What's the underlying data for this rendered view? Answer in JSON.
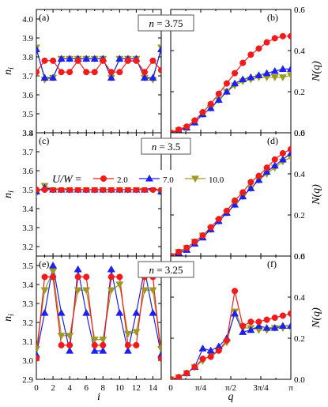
{
  "chart_data": [
    {
      "type": "line",
      "panel_label": "(a)",
      "n_label": "n = 3.75",
      "xlabel": "",
      "ylabel": "n_i",
      "xlim": [
        0,
        15
      ],
      "ylim": [
        3.4,
        4.05
      ],
      "yticks": [
        "3.4",
        "3.5",
        "3.6",
        "3.7",
        "3.8",
        "3.9",
        "4.0"
      ],
      "xticks": [],
      "series": [
        {
          "name": "2.0",
          "x": [
            0,
            1,
            2,
            3,
            4,
            5,
            6,
            7,
            8,
            9,
            10,
            11,
            12,
            13,
            14,
            15
          ],
          "y": [
            3.72,
            3.78,
            3.78,
            3.72,
            3.72,
            3.78,
            3.72,
            3.72,
            3.78,
            3.72,
            3.72,
            3.78,
            3.78,
            3.72,
            3.78,
            3.73
          ]
        },
        {
          "name": "7.0",
          "x": [
            0,
            1,
            2,
            3,
            4,
            5,
            6,
            7,
            8,
            9,
            10,
            11,
            12,
            13,
            14,
            15
          ],
          "y": [
            3.84,
            3.69,
            3.69,
            3.79,
            3.79,
            3.79,
            3.79,
            3.79,
            3.79,
            3.69,
            3.79,
            3.79,
            3.79,
            3.69,
            3.69,
            3.84
          ]
        },
        {
          "name": "10.0",
          "x": [
            0,
            1,
            2,
            3,
            4,
            5,
            6,
            7,
            8,
            9,
            10,
            11,
            12,
            13,
            14,
            15
          ],
          "y": [
            3.85,
            3.68,
            3.69,
            3.79,
            3.79,
            3.79,
            3.79,
            3.79,
            3.79,
            3.69,
            3.79,
            3.79,
            3.79,
            3.69,
            3.68,
            3.85
          ]
        }
      ]
    },
    {
      "type": "line",
      "panel_label": "(b)",
      "n_label": "",
      "xlabel": "",
      "ylabel": "N(q)",
      "xlim": [
        0,
        3.14159
      ],
      "ylim": [
        0,
        0.6
      ],
      "yticks": [
        "0.0",
        "0.2",
        "0.4",
        "0.6"
      ],
      "xticks": [],
      "series": [
        {
          "name": "2.0",
          "x": [
            0,
            0.2094,
            0.4189,
            0.6283,
            0.8378,
            1.0472,
            1.2566,
            1.4661,
            1.6755,
            1.885,
            2.0944,
            2.3038,
            2.5133,
            2.7227,
            2.9322,
            3.1416
          ],
          "y": [
            0,
            0.015,
            0.03,
            0.06,
            0.1,
            0.14,
            0.19,
            0.24,
            0.29,
            0.34,
            0.38,
            0.41,
            0.44,
            0.46,
            0.47,
            0.47
          ]
        },
        {
          "name": "7.0",
          "x": [
            0,
            0.2094,
            0.4189,
            0.6283,
            0.8378,
            1.0472,
            1.2566,
            1.4661,
            1.6755,
            1.885,
            2.0944,
            2.3038,
            2.5133,
            2.7227,
            2.9322,
            3.1416
          ],
          "y": [
            0,
            0.012,
            0.025,
            0.05,
            0.09,
            0.12,
            0.16,
            0.2,
            0.24,
            0.26,
            0.27,
            0.28,
            0.29,
            0.3,
            0.31,
            0.31
          ]
        },
        {
          "name": "10.0",
          "x": [
            0,
            0.2094,
            0.4189,
            0.6283,
            0.8378,
            1.0472,
            1.2566,
            1.4661,
            1.6755,
            1.885,
            2.0944,
            2.3038,
            2.5133,
            2.7227,
            2.9322,
            3.1416
          ],
          "y": [
            0,
            0.012,
            0.024,
            0.05,
            0.09,
            0.12,
            0.16,
            0.2,
            0.23,
            0.25,
            0.26,
            0.27,
            0.27,
            0.27,
            0.27,
            0.28
          ]
        }
      ]
    },
    {
      "type": "line",
      "panel_label": "(c)",
      "n_label": "n = 3.5",
      "xlabel": "",
      "ylabel": "n_i",
      "xlim": [
        0,
        15
      ],
      "ylim": [
        3.15,
        3.8
      ],
      "yticks": [
        "3.2",
        "3.3",
        "3.4",
        "3.5",
        "3.6",
        "3.7",
        "3.8"
      ],
      "xticks": [],
      "legend": {
        "prefix": "U/W =",
        "entries": [
          "2.0",
          "7.0",
          "10.0"
        ],
        "placement": "top-left"
      },
      "series": [
        {
          "name": "2.0",
          "x": [
            0,
            1,
            2,
            3,
            4,
            5,
            6,
            7,
            8,
            9,
            10,
            11,
            12,
            13,
            14,
            15
          ],
          "y": [
            3.5,
            3.5,
            3.5,
            3.5,
            3.5,
            3.5,
            3.5,
            3.5,
            3.5,
            3.5,
            3.5,
            3.5,
            3.5,
            3.5,
            3.5,
            3.5
          ]
        },
        {
          "name": "7.0",
          "x": [
            0,
            1,
            2,
            3,
            4,
            5,
            6,
            7,
            8,
            9,
            10,
            11,
            12,
            13,
            14,
            15
          ],
          "y": [
            3.49,
            3.51,
            3.5,
            3.5,
            3.5,
            3.5,
            3.5,
            3.5,
            3.5,
            3.5,
            3.5,
            3.5,
            3.5,
            3.5,
            3.51,
            3.49
          ]
        },
        {
          "name": "10.0",
          "x": [
            0,
            1,
            2,
            3,
            4,
            5,
            6,
            7,
            8,
            9,
            10,
            11,
            12,
            13,
            14,
            15
          ],
          "y": [
            3.48,
            3.52,
            3.5,
            3.51,
            3.5,
            3.5,
            3.5,
            3.5,
            3.5,
            3.5,
            3.5,
            3.5,
            3.5,
            3.51,
            3.52,
            3.48
          ]
        }
      ]
    },
    {
      "type": "line",
      "panel_label": "(d)",
      "n_label": "",
      "xlabel": "",
      "ylabel": "N(q)",
      "xlim": [
        0,
        3.14159
      ],
      "ylim": [
        0,
        0.6
      ],
      "yticks": [
        "0.0",
        "0.2",
        "0.4",
        "0.6"
      ],
      "xticks": [],
      "series": [
        {
          "name": "2.0",
          "x": [
            0,
            0.2094,
            0.4189,
            0.6283,
            0.8378,
            1.0472,
            1.2566,
            1.4661,
            1.6755,
            1.885,
            2.0944,
            2.3038,
            2.5133,
            2.7227,
            2.9322,
            3.1416
          ],
          "y": [
            0,
            0.02,
            0.04,
            0.07,
            0.1,
            0.14,
            0.18,
            0.22,
            0.27,
            0.31,
            0.36,
            0.39,
            0.43,
            0.47,
            0.5,
            0.52
          ]
        },
        {
          "name": "7.0",
          "x": [
            0,
            0.2094,
            0.4189,
            0.6283,
            0.8378,
            1.0472,
            1.2566,
            1.4661,
            1.6755,
            1.885,
            2.0944,
            2.3038,
            2.5133,
            2.7227,
            2.9322,
            3.1416
          ],
          "y": [
            0,
            0.015,
            0.03,
            0.06,
            0.09,
            0.13,
            0.17,
            0.21,
            0.25,
            0.29,
            0.33,
            0.37,
            0.41,
            0.44,
            0.47,
            0.5
          ]
        },
        {
          "name": "10.0",
          "x": [
            0,
            0.2094,
            0.4189,
            0.6283,
            0.8378,
            1.0472,
            1.2566,
            1.4661,
            1.6755,
            1.885,
            2.0944,
            2.3038,
            2.5133,
            2.7227,
            2.9322,
            3.1416
          ],
          "y": [
            0,
            0.02,
            0.04,
            0.07,
            0.1,
            0.13,
            0.17,
            0.21,
            0.25,
            0.29,
            0.33,
            0.37,
            0.4,
            0.43,
            0.46,
            0.48
          ]
        }
      ]
    },
    {
      "type": "line",
      "panel_label": "(e)",
      "n_label": "n = 3.25",
      "xlabel": "i",
      "ylabel": "n_i",
      "xlim": [
        0,
        15
      ],
      "ylim": [
        2.9,
        3.55
      ],
      "yticks": [
        "2.9",
        "3.0",
        "3.1",
        "3.2",
        "3.3",
        "3.4",
        "3.5"
      ],
      "xticks": [
        "0",
        "2",
        "4",
        "6",
        "8",
        "10",
        "12",
        "14"
      ],
      "series": [
        {
          "name": "2.0",
          "x": [
            0,
            1,
            2,
            3,
            4,
            5,
            6,
            7,
            8,
            9,
            10,
            11,
            12,
            13,
            14,
            15
          ],
          "y": [
            3.01,
            3.44,
            3.44,
            3.08,
            3.08,
            3.44,
            3.44,
            3.08,
            3.08,
            3.44,
            3.44,
            3.08,
            3.08,
            3.44,
            3.44,
            3.01
          ]
        },
        {
          "name": "7.0",
          "x": [
            0,
            1,
            2,
            3,
            4,
            5,
            6,
            7,
            8,
            9,
            10,
            11,
            12,
            13,
            14,
            15
          ],
          "y": [
            3.03,
            3.25,
            3.5,
            3.25,
            3.05,
            3.48,
            3.25,
            3.05,
            3.05,
            3.48,
            3.25,
            3.05,
            3.25,
            3.48,
            3.25,
            3.03
          ]
        },
        {
          "name": "10.0",
          "x": [
            0,
            1,
            2,
            3,
            4,
            5,
            6,
            7,
            8,
            9,
            10,
            11,
            12,
            13,
            14,
            15
          ],
          "y": [
            3.06,
            3.37,
            3.47,
            3.13,
            3.13,
            3.37,
            3.37,
            3.11,
            3.11,
            3.37,
            3.4,
            3.14,
            3.15,
            3.37,
            3.37,
            3.06
          ]
        }
      ]
    },
    {
      "type": "line",
      "panel_label": "(f)",
      "n_label": "",
      "xlabel": "q",
      "ylabel": "N(q)",
      "xlim": [
        0,
        3.14159
      ],
      "ylim": [
        0,
        0.6
      ],
      "yticks": [
        "0.0",
        "0.2",
        "0.4",
        "0.6"
      ],
      "xticks": [
        "0",
        "π/4",
        "π/2",
        "3π/4",
        "π"
      ],
      "series": [
        {
          "name": "2.0",
          "x": [
            0,
            0.2094,
            0.4189,
            0.6283,
            0.8378,
            1.0472,
            1.2566,
            1.4661,
            1.6755,
            1.885,
            2.0944,
            2.3038,
            2.5133,
            2.7227,
            2.9322,
            3.1416
          ],
          "y": [
            0,
            0.01,
            0.03,
            0.06,
            0.1,
            0.11,
            0.14,
            0.19,
            0.43,
            0.26,
            0.28,
            0.28,
            0.29,
            0.3,
            0.31,
            0.32
          ]
        },
        {
          "name": "7.0",
          "x": [
            0,
            0.2094,
            0.4189,
            0.6283,
            0.8378,
            1.0472,
            1.2566,
            1.4661,
            1.6755,
            1.885,
            2.0944,
            2.3038,
            2.5133,
            2.7227,
            2.9322,
            3.1416
          ],
          "y": [
            0,
            0.01,
            0.03,
            0.06,
            0.15,
            0.14,
            0.16,
            0.2,
            0.32,
            0.23,
            0.24,
            0.26,
            0.25,
            0.25,
            0.26,
            0.26
          ]
        },
        {
          "name": "10.0",
          "x": [
            0,
            0.2094,
            0.4189,
            0.6283,
            0.8378,
            1.0472,
            1.2566,
            1.4661,
            1.6755,
            1.885,
            2.0944,
            2.3038,
            2.5133,
            2.7227,
            2.9322,
            3.1416
          ],
          "y": [
            0,
            0.01,
            0.03,
            0.06,
            0.09,
            0.12,
            0.14,
            0.18,
            0.33,
            0.25,
            0.25,
            0.24,
            0.24,
            0.25,
            0.25,
            0.25
          ]
        }
      ]
    }
  ],
  "series_colors": {
    "2.0": "#ee1c1c",
    "7.0": "#1e22e6",
    "10.0": "#9c9a24"
  },
  "series_markers": {
    "2.0": "circle",
    "7.0": "triangle-up",
    "10.0": "triangle-down"
  }
}
